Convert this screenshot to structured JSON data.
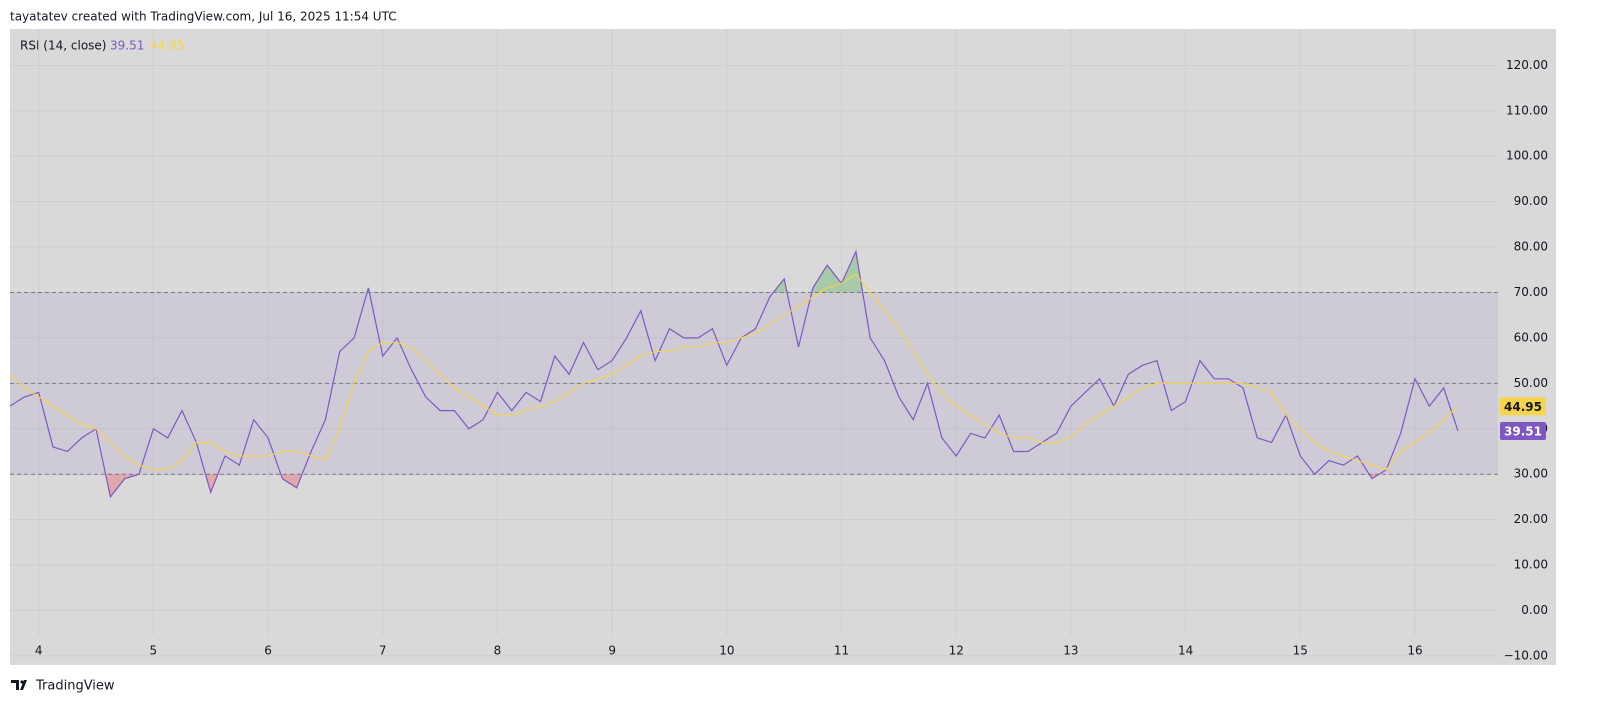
{
  "header": "tayatatev created with TradingView.com, Jul 16, 2025 11:54 UTC",
  "footer": "TradingView",
  "chart_data": {
    "type": "line",
    "title": "RSI (14, close)",
    "categories": [
      null,
      null,
      "4",
      null,
      null,
      null,
      null,
      null,
      null,
      null,
      "5",
      null,
      null,
      null,
      null,
      null,
      null,
      null,
      "6",
      null,
      null,
      null,
      null,
      null,
      null,
      null,
      "7",
      null,
      null,
      null,
      null,
      null,
      null,
      null,
      "8",
      null,
      null,
      null,
      null,
      null,
      null,
      null,
      "9",
      null,
      null,
      null,
      null,
      null,
      null,
      null,
      "10",
      null,
      null,
      null,
      null,
      null,
      null,
      null,
      "11",
      null,
      null,
      null,
      null,
      null,
      null,
      null,
      "12",
      null,
      null,
      null,
      null,
      null,
      null,
      null,
      "13",
      null,
      null,
      null,
      null,
      null,
      null,
      null,
      "14",
      null,
      null,
      null,
      null,
      null,
      null,
      null,
      "15",
      null,
      null,
      null,
      null,
      null,
      null,
      null,
      "16",
      null,
      null,
      null
    ],
    "series": [
      {
        "color": "#7e57c2",
        "values": [
          45,
          47,
          48,
          36,
          35,
          38,
          40,
          25,
          29,
          30,
          40,
          38,
          44,
          37,
          26,
          34,
          32,
          42,
          38,
          29,
          27,
          35,
          42,
          57,
          60,
          71,
          56,
          60,
          53,
          47,
          44,
          44,
          40,
          42,
          48,
          44,
          48,
          46,
          56,
          52,
          59,
          53,
          55,
          60,
          66,
          55,
          62,
          60,
          60,
          62,
          54,
          60,
          62,
          69,
          73,
          58,
          71,
          76,
          72,
          79,
          60,
          55,
          47,
          42,
          50,
          38,
          34,
          39,
          38,
          43,
          35,
          35,
          37,
          39,
          45,
          48,
          51,
          45,
          52,
          54,
          55,
          44,
          46,
          55,
          51,
          51,
          49,
          38,
          37,
          43,
          34,
          30,
          33,
          32,
          34,
          29,
          31,
          39,
          51,
          45,
          49,
          39.51
        ]
      },
      {
        "color": "#f7d54a",
        "values": [
          52,
          49,
          47,
          45,
          43,
          41,
          40,
          37,
          34,
          32,
          31,
          31,
          33,
          37,
          37,
          35,
          34,
          34,
          34,
          35,
          35,
          34,
          33,
          40,
          50,
          57,
          59,
          59,
          58,
          55,
          52,
          49,
          47,
          45,
          43,
          43,
          44,
          45,
          46,
          48,
          50,
          51,
          52,
          54,
          56,
          57,
          57,
          58,
          58,
          59,
          59,
          60,
          61,
          63,
          65,
          67,
          69,
          71,
          72,
          74,
          70,
          66,
          62,
          57,
          52,
          48,
          45,
          43,
          41,
          39,
          38,
          38,
          37,
          37,
          38,
          41,
          43,
          45,
          47,
          49,
          50,
          50,
          50,
          50,
          50,
          50,
          50,
          49,
          48,
          43,
          40,
          37,
          35,
          34,
          33,
          32,
          31,
          35,
          37,
          39,
          42,
          44.95
        ]
      }
    ],
    "levels": [
      70,
      50,
      30
    ],
    "ylim": [
      -12,
      128
    ],
    "yticks": [
      {
        "value": -10,
        "label": "−10.00"
      },
      {
        "value": 0,
        "label": "0.00"
      },
      {
        "value": 10,
        "label": "10.00"
      },
      {
        "value": 20,
        "label": "20.00"
      },
      {
        "value": 30,
        "label": "30.00"
      },
      {
        "value": 40,
        "label": "40.00"
      },
      {
        "value": 50,
        "label": "50.00"
      },
      {
        "value": 60,
        "label": "60.00"
      },
      {
        "value": 70,
        "label": "70.00"
      },
      {
        "value": 80,
        "label": "80.00"
      },
      {
        "value": 90,
        "label": "90.00"
      },
      {
        "value": 100,
        "label": "100.00"
      },
      {
        "value": 110,
        "label": "110.00"
      },
      {
        "value": 120,
        "label": "120.00"
      }
    ],
    "grid": true
  }
}
